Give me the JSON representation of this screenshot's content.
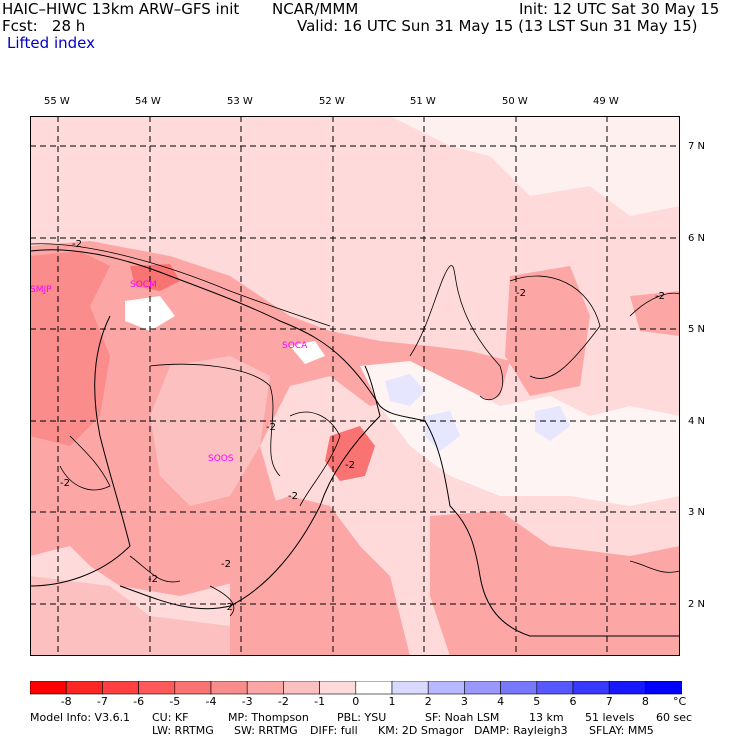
{
  "header": {
    "model_title": "HAIC–HIWC 13km ARW–GFS init",
    "org": "NCAR/MMM",
    "init": "Init: 12 UTC Sat 30 May 15",
    "fcst": "Fcst:   28 h",
    "valid": "Valid: 16 UTC Sun 31 May 15 (13 LST Sun 31 May 15)",
    "field": "Lifted index"
  },
  "lon_labels": [
    "55 W",
    "54 W",
    "53 W",
    "52 W",
    "51 W",
    "50 W",
    "49 W"
  ],
  "lat_labels": [
    "7 N",
    "6 N",
    "5 N",
    "4 N",
    "3 N",
    "2 N"
  ],
  "stations": [
    "SMJP",
    "SOCM",
    "SOCA",
    "SOOS"
  ],
  "contour_labels": [
    "-2",
    "-2",
    "-2",
    "-2",
    "-2",
    "-2",
    "-2",
    "-2",
    "-2",
    "-2"
  ],
  "colorbar": {
    "labels": [
      "-8",
      "-7",
      "-6",
      "-5",
      "-4",
      "-3",
      "-2",
      "-1",
      "0",
      "1",
      "2",
      "3",
      "4",
      "5",
      "6",
      "7",
      "8"
    ],
    "unit": "°C",
    "colors": [
      "#ff0000",
      "#ff2626",
      "#ff4040",
      "#ff5959",
      "#fa7373",
      "#fa8c8c",
      "#fca6a6",
      "#fdc0c0",
      "#fedada",
      "#ffffff",
      "#d9d9ff",
      "#b8b8ff",
      "#9898ff",
      "#7878ff",
      "#5858ff",
      "#3838ff",
      "#1818ff",
      "#0000ff"
    ]
  },
  "info": {
    "line1": [
      "Model Info: V3.6.1",
      "CU: KF",
      "MP: Thompson",
      "PBL: YSU",
      "SF: Noah LSM",
      "13 km",
      "51 levels",
      "60 sec"
    ],
    "line2": [
      "LW: RRTMG",
      "SW: RRTMG",
      "DIFF: full",
      "KM: 2D Smagor",
      "DAMP: Rayleigh3",
      "SFLAY: MM5"
    ]
  }
}
